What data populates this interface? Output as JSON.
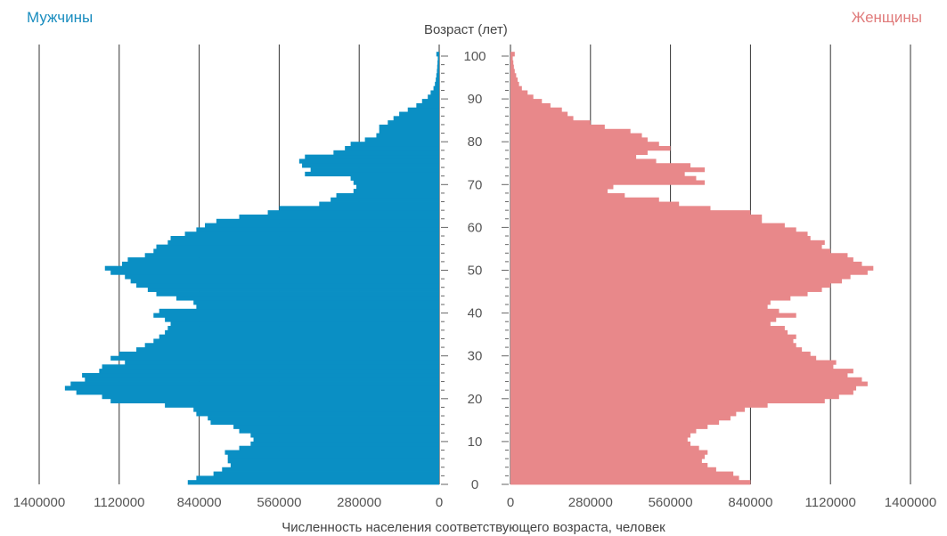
{
  "header": {
    "left_label": "Мужчины",
    "right_label": "Женщины",
    "y_axis_title": "Возраст (лет)",
    "x_axis_title": "Численность населения соответствующего возраста,  человек"
  },
  "colors": {
    "male": "#0a8fc4",
    "female": "#e8888a",
    "grid": "#333333"
  },
  "chart_data": {
    "type": "bar",
    "orientation": "horizontal-population-pyramid",
    "y_label": "Возраст (лет)",
    "x_label": "Численность населения соответствующего возраста,  человек",
    "age_ticks": [
      0,
      10,
      20,
      30,
      40,
      50,
      60,
      70,
      80,
      90,
      100
    ],
    "x_ticks_left": [
      "1400000",
      "1120000",
      "840000",
      "560000",
      "280000",
      "0"
    ],
    "x_ticks_right": [
      "0",
      "280000",
      "560000",
      "840000",
      "1120000",
      "1400000"
    ],
    "xlim": [
      0,
      1400000
    ],
    "ylim": [
      0,
      100
    ],
    "grid": "vertical",
    "series": [
      {
        "name": "Мужчины",
        "side": "left",
        "ages": [
          0,
          1,
          2,
          3,
          4,
          5,
          6,
          7,
          8,
          9,
          10,
          11,
          12,
          13,
          14,
          15,
          16,
          17,
          18,
          19,
          20,
          21,
          22,
          23,
          24,
          25,
          26,
          27,
          28,
          29,
          30,
          31,
          32,
          33,
          34,
          35,
          36,
          37,
          38,
          39,
          40,
          41,
          42,
          43,
          44,
          45,
          46,
          47,
          48,
          49,
          50,
          51,
          52,
          53,
          54,
          55,
          56,
          57,
          58,
          59,
          60,
          61,
          62,
          63,
          64,
          65,
          66,
          67,
          68,
          69,
          70,
          71,
          72,
          73,
          74,
          75,
          76,
          77,
          78,
          79,
          80,
          81,
          82,
          83,
          84,
          85,
          86,
          87,
          88,
          89,
          90,
          91,
          92,
          93,
          94,
          95,
          96,
          97,
          98,
          99,
          100
        ],
        "values": [
          880000,
          850000,
          790000,
          760000,
          730000,
          740000,
          740000,
          750000,
          700000,
          660000,
          650000,
          660000,
          700000,
          720000,
          800000,
          810000,
          850000,
          860000,
          960000,
          1150000,
          1180000,
          1270000,
          1310000,
          1290000,
          1240000,
          1250000,
          1190000,
          1180000,
          1100000,
          1150000,
          1120000,
          1060000,
          1030000,
          1000000,
          980000,
          960000,
          950000,
          940000,
          960000,
          1000000,
          980000,
          850000,
          860000,
          920000,
          990000,
          1020000,
          1060000,
          1080000,
          1100000,
          1150000,
          1170000,
          1110000,
          1090000,
          1030000,
          1000000,
          990000,
          950000,
          940000,
          890000,
          850000,
          820000,
          780000,
          700000,
          600000,
          560000,
          420000,
          380000,
          360000,
          300000,
          290000,
          300000,
          310000,
          470000,
          450000,
          480000,
          490000,
          470000,
          370000,
          330000,
          310000,
          260000,
          220000,
          210000,
          210000,
          180000,
          160000,
          140000,
          110000,
          80000,
          60000,
          40000,
          30000,
          20000,
          15000,
          12000,
          10000,
          8000,
          7000,
          6000,
          5000,
          10000
        ]
      },
      {
        "name": "Женщины",
        "side": "right",
        "ages": [
          0,
          1,
          2,
          3,
          4,
          5,
          6,
          7,
          8,
          9,
          10,
          11,
          12,
          13,
          14,
          15,
          16,
          17,
          18,
          19,
          20,
          21,
          22,
          23,
          24,
          25,
          26,
          27,
          28,
          29,
          30,
          31,
          32,
          33,
          34,
          35,
          36,
          37,
          38,
          39,
          40,
          41,
          42,
          43,
          44,
          45,
          46,
          47,
          48,
          49,
          50,
          51,
          52,
          53,
          54,
          55,
          56,
          57,
          58,
          59,
          60,
          61,
          62,
          63,
          64,
          65,
          66,
          67,
          68,
          69,
          70,
          71,
          72,
          73,
          74,
          75,
          76,
          77,
          78,
          79,
          80,
          81,
          82,
          83,
          84,
          85,
          86,
          87,
          88,
          89,
          90,
          91,
          92,
          93,
          94,
          95,
          96,
          97,
          98,
          99,
          100
        ],
        "values": [
          840000,
          800000,
          780000,
          720000,
          690000,
          670000,
          680000,
          690000,
          660000,
          630000,
          620000,
          630000,
          650000,
          690000,
          730000,
          770000,
          790000,
          820000,
          900000,
          1100000,
          1150000,
          1200000,
          1210000,
          1250000,
          1230000,
          1180000,
          1200000,
          1130000,
          1140000,
          1070000,
          1050000,
          1020000,
          1000000,
          990000,
          1000000,
          970000,
          960000,
          910000,
          930000,
          1000000,
          940000,
          900000,
          910000,
          980000,
          1040000,
          1090000,
          1120000,
          1160000,
          1190000,
          1250000,
          1270000,
          1230000,
          1200000,
          1180000,
          1120000,
          1090000,
          1100000,
          1050000,
          1040000,
          1000000,
          960000,
          880000,
          880000,
          840000,
          700000,
          590000,
          520000,
          400000,
          340000,
          360000,
          680000,
          650000,
          610000,
          680000,
          630000,
          510000,
          440000,
          480000,
          560000,
          520000,
          480000,
          460000,
          420000,
          330000,
          280000,
          220000,
          200000,
          180000,
          140000,
          110000,
          80000,
          60000,
          40000,
          30000,
          25000,
          20000,
          15000,
          12000,
          10000,
          8000,
          15000
        ]
      }
    ]
  }
}
